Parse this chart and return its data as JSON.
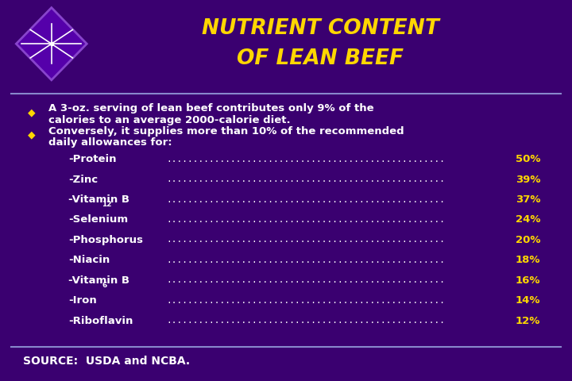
{
  "title_line1": "NUTRIENT CONTENT",
  "title_line2": "OF LEAN BEEF",
  "title_color": "#FFD700",
  "bg_color": "#3a0070",
  "text_color": "#FFFFFF",
  "yellow_color": "#FFD700",
  "nutrients": [
    [
      "-Protein",
      "50%",
      false,
      ""
    ],
    [
      "-Zinc",
      "39%",
      false,
      ""
    ],
    [
      "-Vitamin B",
      "37%",
      true,
      "12"
    ],
    [
      "-Selenium",
      "24%",
      false,
      ""
    ],
    [
      "-Phosphorus",
      "20%",
      false,
      ""
    ],
    [
      "-Niacin",
      "18%",
      false,
      ""
    ],
    [
      "-Vitamin B",
      "16%",
      true,
      "6"
    ],
    [
      "-Iron",
      "14%",
      false,
      ""
    ],
    [
      "-Riboflavin",
      "12%",
      false,
      ""
    ]
  ],
  "source_text": "SOURCE:  USDA and NCBA.",
  "separator_color": "#8888CC",
  "diamond_color": "#5500AA",
  "diamond_edge": "#8844CC"
}
